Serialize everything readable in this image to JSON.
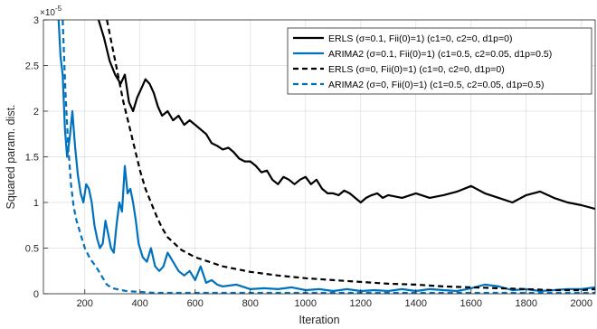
{
  "chart_data": {
    "type": "line",
    "xlabel": "Iteration",
    "ylabel": "Squared param. dist.",
    "y_exponent_label": "×10",
    "y_exponent_power": "-5",
    "xlim": [
      50,
      2050
    ],
    "ylim": [
      0,
      3
    ],
    "xticks": [
      200,
      400,
      600,
      800,
      1000,
      1200,
      1400,
      1600,
      1800,
      2000
    ],
    "yticks": [
      0,
      0.5,
      1,
      1.5,
      2,
      2.5,
      3
    ],
    "ytick_labels": [
      "0",
      "0.5",
      "1",
      "1.5",
      "2",
      "2.5",
      "3"
    ],
    "grid": true,
    "legend_position": "top-right",
    "series": [
      {
        "name": "ERLS (σ=0.1, Fii(0)=1) (c1=0, c2=0, d1p=0)",
        "color": "#000000",
        "style": "solid",
        "x": [
          250,
          270,
          290,
          310,
          330,
          345,
          360,
          375,
          390,
          405,
          420,
          435,
          450,
          465,
          480,
          500,
          520,
          540,
          560,
          580,
          600,
          620,
          640,
          660,
          680,
          700,
          720,
          740,
          760,
          780,
          800,
          820,
          840,
          860,
          880,
          900,
          920,
          940,
          960,
          980,
          1000,
          1020,
          1040,
          1060,
          1080,
          1100,
          1120,
          1140,
          1160,
          1180,
          1200,
          1220,
          1240,
          1260,
          1280,
          1300,
          1350,
          1400,
          1450,
          1500,
          1550,
          1600,
          1650,
          1700,
          1750,
          1800,
          1850,
          1900,
          1950,
          2000,
          2050
        ],
        "y": [
          3.0,
          2.8,
          2.55,
          2.4,
          2.3,
          2.4,
          2.1,
          2.0,
          2.15,
          2.25,
          2.35,
          2.3,
          2.2,
          2.05,
          1.95,
          2.0,
          1.9,
          1.95,
          1.85,
          1.9,
          1.85,
          1.8,
          1.75,
          1.65,
          1.62,
          1.58,
          1.6,
          1.55,
          1.48,
          1.45,
          1.45,
          1.4,
          1.33,
          1.35,
          1.25,
          1.2,
          1.28,
          1.25,
          1.2,
          1.25,
          1.28,
          1.2,
          1.25,
          1.15,
          1.1,
          1.1,
          1.08,
          1.13,
          1.1,
          1.05,
          1.0,
          1.05,
          1.08,
          1.1,
          1.05,
          1.08,
          1.05,
          1.1,
          1.05,
          1.08,
          1.12,
          1.18,
          1.1,
          1.05,
          1.0,
          1.08,
          1.12,
          1.05,
          1.0,
          0.97,
          0.93
        ]
      },
      {
        "name": "ARIMA2 (σ=0.1, Fii(0)=1) (c1=0.5, c2=0.05, d1p=0.5)",
        "color": "#0072bd",
        "style": "solid",
        "x": [
          105,
          112,
          120,
          128,
          136,
          145,
          155,
          165,
          175,
          185,
          195,
          205,
          215,
          225,
          235,
          245,
          255,
          265,
          275,
          285,
          295,
          305,
          315,
          325,
          335,
          345,
          355,
          365,
          375,
          385,
          395,
          410,
          425,
          440,
          455,
          470,
          485,
          500,
          520,
          540,
          560,
          580,
          600,
          620,
          640,
          660,
          680,
          700,
          750,
          800,
          850,
          900,
          950,
          1000,
          1050,
          1100,
          1150,
          1200,
          1250,
          1300,
          1350,
          1400,
          1450,
          1500,
          1550,
          1600,
          1650,
          1700,
          1750,
          1800,
          1850,
          1900,
          1950,
          2000,
          2050
        ],
        "y": [
          3.0,
          2.6,
          2.4,
          1.8,
          1.5,
          1.7,
          2.0,
          1.6,
          1.3,
          1.1,
          1.0,
          1.2,
          1.15,
          1.0,
          0.75,
          0.6,
          0.5,
          0.55,
          0.8,
          0.65,
          0.5,
          0.45,
          0.75,
          1.0,
          0.9,
          1.4,
          1.1,
          1.15,
          1.0,
          0.8,
          0.55,
          0.4,
          0.35,
          0.5,
          0.3,
          0.25,
          0.3,
          0.45,
          0.35,
          0.25,
          0.2,
          0.25,
          0.15,
          0.3,
          0.12,
          0.15,
          0.1,
          0.08,
          0.1,
          0.05,
          0.06,
          0.05,
          0.07,
          0.04,
          0.05,
          0.03,
          0.05,
          0.03,
          0.04,
          0.03,
          0.05,
          0.03,
          0.05,
          0.04,
          0.03,
          0.06,
          0.1,
          0.08,
          0.04,
          0.05,
          0.03,
          0.04,
          0.05,
          0.05,
          0.07
        ]
      },
      {
        "name": "ERLS (σ=0, Fii(0)=1) (c1=0, c2=0, d1p=0)",
        "color": "#000000",
        "style": "dashed",
        "x": [
          280,
          300,
          320,
          340,
          360,
          380,
          400,
          420,
          440,
          460,
          480,
          500,
          550,
          600,
          650,
          700,
          800,
          900,
          1000,
          1100,
          1200,
          1300,
          1400,
          1500,
          1600,
          1700,
          1800,
          1900,
          2000,
          2050
        ],
        "y": [
          3.0,
          2.7,
          2.4,
          2.1,
          1.85,
          1.6,
          1.35,
          1.15,
          1.0,
          0.85,
          0.72,
          0.62,
          0.48,
          0.4,
          0.35,
          0.3,
          0.24,
          0.2,
          0.17,
          0.15,
          0.13,
          0.11,
          0.1,
          0.08,
          0.07,
          0.06,
          0.05,
          0.04,
          0.04,
          0.05
        ]
      },
      {
        "name": "ARIMA2 (σ=0, Fii(0)=1) (c1=0.5, c2=0.05, d1p=0.5)",
        "color": "#0072bd",
        "style": "dashed",
        "x": [
          120,
          130,
          140,
          150,
          160,
          170,
          180,
          190,
          200,
          220,
          240,
          260,
          280,
          300,
          350,
          400,
          450,
          500,
          600,
          800,
          1000,
          1500,
          2050
        ],
        "y": [
          3.0,
          2.2,
          1.6,
          1.2,
          0.95,
          0.8,
          0.7,
          0.6,
          0.5,
          0.38,
          0.3,
          0.2,
          0.1,
          0.06,
          0.03,
          0.02,
          0.01,
          0.01,
          0.01,
          0.01,
          0.01,
          0.01,
          0.01
        ]
      }
    ]
  }
}
